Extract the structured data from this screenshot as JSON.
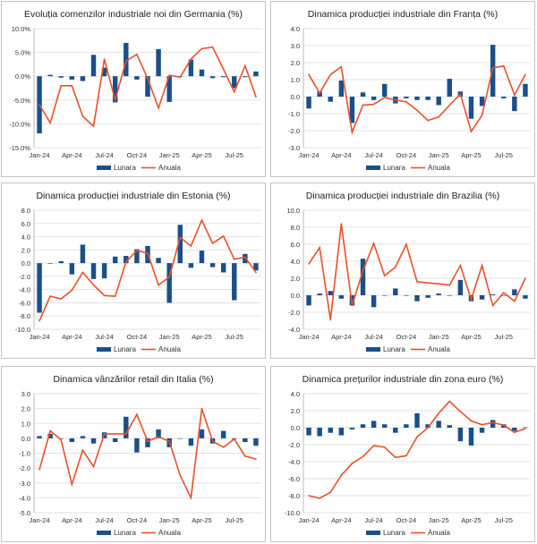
{
  "legend": {
    "monthly": "Lunara",
    "annual": "Anuala"
  },
  "colors": {
    "monthly": "#1b4f8a",
    "annual": "#e8502a",
    "grid": "#e2e2e2"
  },
  "chart_data": [
    {
      "type": "bar+line",
      "title": "Evoluția comenzilor industriale noi din Germania (%)",
      "categories": [
        "Jan-24",
        "Feb-24",
        "Mar-24",
        "Apr-24",
        "May-24",
        "Jun-24",
        "Jul-24",
        "Aug-24",
        "Sep-24",
        "Oct-24",
        "Nov-24",
        "Dec-24",
        "Jan-25",
        "Feb-25",
        "Mar-25",
        "Apr-25",
        "May-25",
        "Jun-25",
        "Jul-25",
        "Aug-25",
        "Sep-25"
      ],
      "tick_labels": [
        "Jan-24",
        "Apr-24",
        "Jul-24",
        "Oct-24",
        "Jan-25",
        "Apr-25",
        "Jul-25"
      ],
      "ylim": [
        -15,
        10
      ],
      "ystep": 5,
      "yformat": "percent1",
      "grid": true,
      "legend_position": "bottom",
      "series": [
        {
          "name": "Lunara",
          "kind": "bar",
          "values": [
            -12.0,
            0.3,
            -0.3,
            -0.7,
            -1.0,
            4.5,
            1.8,
            -5.5,
            7.0,
            -0.7,
            -4.3,
            5.7,
            -5.4,
            0,
            3.5,
            1.4,
            -0.4,
            -0.2,
            -2.5,
            -0.2,
            1.0
          ]
        },
        {
          "name": "Anuala",
          "kind": "line",
          "values": [
            -6.0,
            -9.8,
            -2.0,
            -2.0,
            -8.4,
            -10.5,
            3.6,
            -5.0,
            3.2,
            4.6,
            -0.5,
            -6.7,
            0.2,
            -0.2,
            3.6,
            5.8,
            6.1,
            1.5,
            -3.3,
            2.2,
            -4.3
          ]
        }
      ]
    },
    {
      "type": "bar+line",
      "title": "Dinamica producției industriale din Franța (%)",
      "categories": [
        "Jan-24",
        "Feb-24",
        "Mar-24",
        "Apr-24",
        "May-24",
        "Jun-24",
        "Jul-24",
        "Aug-24",
        "Sep-24",
        "Oct-24",
        "Nov-24",
        "Dec-24",
        "Jan-25",
        "Feb-25",
        "Mar-25",
        "Apr-25",
        "May-25",
        "Jun-25",
        "Jul-25",
        "Aug-25",
        "Sep-25"
      ],
      "tick_labels": [
        "Jan-24",
        "Apr-24",
        "Jul-24",
        "Oct-24",
        "Jan-25",
        "Apr-25",
        "Jul-25"
      ],
      "ylim": [
        -3,
        4
      ],
      "ystep": 1,
      "yformat": "fixed1",
      "grid": true,
      "legend_position": "bottom",
      "series": [
        {
          "name": "Lunara",
          "kind": "bar",
          "values": [
            -0.7,
            0.3,
            -0.3,
            0.95,
            -1.55,
            0.25,
            -0.2,
            0.75,
            -0.4,
            -0.1,
            -0.2,
            -0.2,
            -0.5,
            1.05,
            0.3,
            -1.3,
            -0.55,
            3.05,
            -0.1,
            -0.85,
            0.75
          ]
        },
        {
          "name": "Anuala",
          "kind": "line",
          "values": [
            1.3,
            0.2,
            1.3,
            1.75,
            -2.1,
            -0.5,
            -0.45,
            -0.05,
            -0.2,
            -0.3,
            -0.8,
            -1.4,
            -1.2,
            -0.5,
            0.15,
            -2.05,
            -1.1,
            1.7,
            1.8,
            0.1,
            1.3
          ]
        }
      ]
    },
    {
      "type": "bar+line",
      "title": "Dinamica producției industriale din Estonia (%)",
      "categories": [
        "Jan-24",
        "Feb-24",
        "Mar-24",
        "Apr-24",
        "May-24",
        "Jun-24",
        "Jul-24",
        "Aug-24",
        "Sep-24",
        "Oct-24",
        "Nov-24",
        "Dec-24",
        "Jan-25",
        "Feb-25",
        "Mar-25",
        "Apr-25",
        "May-25",
        "Jun-25",
        "Jul-25",
        "Aug-25",
        "Sep-25"
      ],
      "tick_labels": [
        "Jan-24",
        "Apr-24",
        "Jul-24",
        "Oct-24",
        "Jan-25",
        "Apr-25",
        "Jul-25"
      ],
      "ylim": [
        -10,
        8
      ],
      "ystep": 2,
      "yformat": "fixed1",
      "grid": true,
      "legend_position": "bottom",
      "series": [
        {
          "name": "Lunara",
          "kind": "bar",
          "values": [
            -7.5,
            0,
            0.3,
            -1.7,
            2.8,
            -2.4,
            -2.3,
            1.0,
            1.1,
            2.1,
            2.6,
            0.8,
            -6.0,
            5.8,
            -0.7,
            1.9,
            -0.6,
            -1.4,
            -5.6,
            1.4,
            -1.1
          ]
        },
        {
          "name": "Anuala",
          "kind": "line",
          "values": [
            -8.7,
            -5.0,
            -5.4,
            -4.1,
            -1.4,
            -3.3,
            -4.9,
            -5.0,
            0.2,
            1.9,
            1.5,
            -3.3,
            -2.1,
            3.9,
            2.6,
            6.5,
            3.0,
            4.1,
            0.6,
            0.9,
            -1.4
          ]
        }
      ]
    },
    {
      "type": "bar+line",
      "title": "Dinamica producției industriale din Brazilia (%)",
      "categories": [
        "Jan-24",
        "Feb-24",
        "Mar-24",
        "Apr-24",
        "May-24",
        "Jun-24",
        "Jul-24",
        "Aug-24",
        "Sep-24",
        "Oct-24",
        "Nov-24",
        "Dec-24",
        "Jan-25",
        "Feb-25",
        "Mar-25",
        "Apr-25",
        "May-25",
        "Jun-25",
        "Jul-25",
        "Aug-25",
        "Sep-25"
      ],
      "tick_labels": [
        "Jan-24",
        "Apr-24",
        "Jul-24",
        "Oct-24",
        "Jan-25",
        "Apr-25",
        "Jul-25"
      ],
      "ylim": [
        -4,
        10
      ],
      "ystep": 2,
      "yformat": "fixed1",
      "grid": true,
      "legend_position": "bottom",
      "series": [
        {
          "name": "Lunara",
          "kind": "bar",
          "values": [
            -1.2,
            0.2,
            0.5,
            -0.4,
            -1.2,
            4.3,
            -1.4,
            0,
            0.8,
            -0.05,
            -0.7,
            -0.3,
            0.2,
            0,
            1.8,
            -0.7,
            -0.5,
            0.1,
            0,
            0.7,
            -0.4
          ]
        },
        {
          "name": "Anuala",
          "kind": "line",
          "values": [
            3.7,
            5.6,
            -2.9,
            8.4,
            -1.2,
            2.9,
            6.1,
            2.3,
            3.3,
            6.0,
            1.6,
            1.45,
            1.35,
            1.2,
            3.5,
            -0.5,
            3.5,
            -1.2,
            0.3,
            -0.7,
            2.0
          ]
        }
      ]
    },
    {
      "type": "bar+line",
      "title": "Dinamica vânzărilor retail din Italia (%)",
      "categories": [
        "Jan-24",
        "Feb-24",
        "Mar-24",
        "Apr-24",
        "May-24",
        "Jun-24",
        "Jul-24",
        "Aug-24",
        "Sep-24",
        "Oct-24",
        "Nov-24",
        "Dec-24",
        "Jan-25",
        "Feb-25",
        "Mar-25",
        "Apr-25",
        "May-25",
        "Jun-25",
        "Jul-25",
        "Aug-25",
        "Sep-25"
      ],
      "tick_labels": [
        "Jan-24",
        "Apr-24",
        "Jul-24",
        "Oct-24",
        "Jan-25",
        "Apr-25",
        "Jul-25"
      ],
      "ylim": [
        -5,
        3
      ],
      "ystep": 1,
      "yformat": "fixed1",
      "grid": true,
      "legend_position": "bottom",
      "series": [
        {
          "name": "Lunara",
          "kind": "bar",
          "values": [
            0.15,
            0.3,
            0,
            -0.25,
            0.15,
            -0.35,
            0.4,
            -0.25,
            1.45,
            -0.95,
            -0.6,
            0.6,
            -0.6,
            0,
            -0.5,
            0.6,
            -0.35,
            0.5,
            -0.05,
            -0.25,
            -0.5
          ]
        },
        {
          "name": "Anuala",
          "kind": "line",
          "values": [
            -2.1,
            0.5,
            -0.1,
            -3.1,
            -0.8,
            -1.9,
            0.3,
            0.3,
            0.3,
            1.6,
            -0.2,
            0.1,
            -0.2,
            -2.5,
            -4.0,
            2.0,
            -0.2,
            -0.6,
            -0.05,
            -1.2,
            -1.4
          ]
        }
      ]
    },
    {
      "type": "bar+line",
      "title": "Dinamica prețurilor industriale din zona euro (%)",
      "categories": [
        "Jan-24",
        "Feb-24",
        "Mar-24",
        "Apr-24",
        "May-24",
        "Jun-24",
        "Jul-24",
        "Aug-24",
        "Sep-24",
        "Oct-24",
        "Nov-24",
        "Dec-24",
        "Jan-25",
        "Feb-25",
        "Mar-25",
        "Apr-25",
        "May-25",
        "Jun-25",
        "Jul-25",
        "Aug-25",
        "Sep-25"
      ],
      "tick_labels": [
        "Jan-24",
        "Apr-24",
        "Jul-24",
        "Oct-24",
        "Jan-25",
        "Apr-25",
        "Jul-25"
      ],
      "ylim": [
        -10,
        4
      ],
      "ystep": 2,
      "yformat": "fixed1",
      "grid": true,
      "legend_position": "bottom",
      "series": [
        {
          "name": "Lunara",
          "kind": "bar",
          "values": [
            -0.9,
            -1.0,
            -0.6,
            -0.9,
            -0.2,
            0.4,
            0.8,
            0.4,
            -0.6,
            0.4,
            1.7,
            0.4,
            0.8,
            0.3,
            -1.6,
            -2.1,
            -0.6,
            0.9,
            0.4,
            -0.4,
            0.05
          ]
        },
        {
          "name": "Anuala",
          "kind": "line",
          "values": [
            -8.0,
            -8.3,
            -7.6,
            -5.6,
            -4.2,
            -3.4,
            -2.1,
            -2.3,
            -3.5,
            -3.3,
            -1.1,
            0,
            1.7,
            3.1,
            1.9,
            0.8,
            0.35,
            0.6,
            0.3,
            -0.55,
            -0.1
          ]
        }
      ]
    }
  ]
}
